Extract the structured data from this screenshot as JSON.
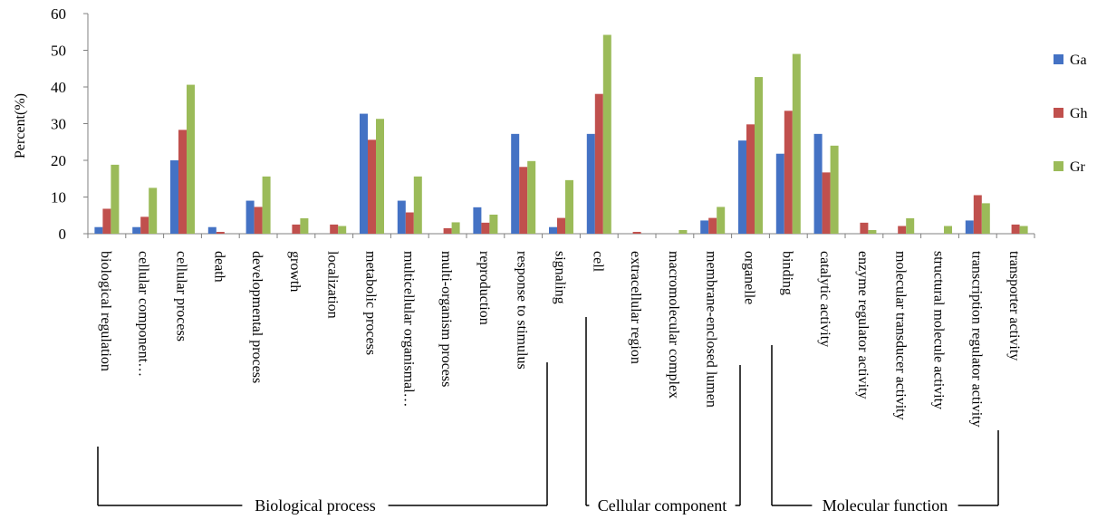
{
  "chart_data": {
    "type": "bar",
    "title": "",
    "xlabel": "",
    "ylabel": "Percent(%)",
    "ylim": [
      0,
      60
    ],
    "yticks": [
      0,
      10,
      20,
      30,
      40,
      50,
      60
    ],
    "grid": false,
    "legend_position": "right",
    "categories": [
      "biological regulation",
      "cellular component…",
      "cellular process",
      "death",
      "developmental process",
      "growth",
      "localization",
      "metabolic process",
      "multicellular organismal…",
      "multi-organism process",
      "reproduction",
      "response to stimulus",
      "signaling",
      "cell",
      "extracellular region",
      "macromolecular complex",
      "membrane-enclosed lumen",
      "organelle",
      "binding",
      "catalytic activity",
      "enzyme regulator activity",
      "molecular transducer activity",
      "structural molecule activity",
      "transcription regulator activity",
      "transporter activity"
    ],
    "series": [
      {
        "name": "Ga",
        "color": "#4472C4",
        "values": [
          1.8,
          1.8,
          20,
          1.8,
          9,
          0,
          0,
          32.7,
          9,
          0,
          7.2,
          27.2,
          1.8,
          27.2,
          0,
          0,
          3.6,
          25.4,
          21.8,
          27.2,
          0,
          0,
          0,
          3.6,
          0
        ]
      },
      {
        "name": "Gh",
        "color": "#C0504D",
        "values": [
          6.8,
          4.6,
          28.3,
          0.5,
          7.3,
          2.5,
          2.5,
          25.6,
          5.8,
          1.5,
          3,
          18.2,
          4.3,
          38.1,
          0.5,
          0,
          4.3,
          29.8,
          33.5,
          16.7,
          3,
          2.1,
          0,
          10.5,
          2.5
        ]
      },
      {
        "name": "Gr",
        "color": "#9BBB59",
        "values": [
          18.8,
          12.5,
          40.6,
          0,
          15.6,
          4.2,
          2.1,
          31.3,
          15.6,
          3.1,
          5.2,
          19.8,
          14.6,
          54.2,
          0,
          1,
          7.3,
          42.7,
          49,
          24,
          1,
          4.2,
          2.1,
          8.3,
          2.1
        ]
      }
    ],
    "groups": [
      {
        "label": "Biological process",
        "start": 0,
        "end": 12
      },
      {
        "label": "Cellular component",
        "start": 13,
        "end": 17
      },
      {
        "label": "Molecular function",
        "start": 18,
        "end": 24
      }
    ]
  }
}
